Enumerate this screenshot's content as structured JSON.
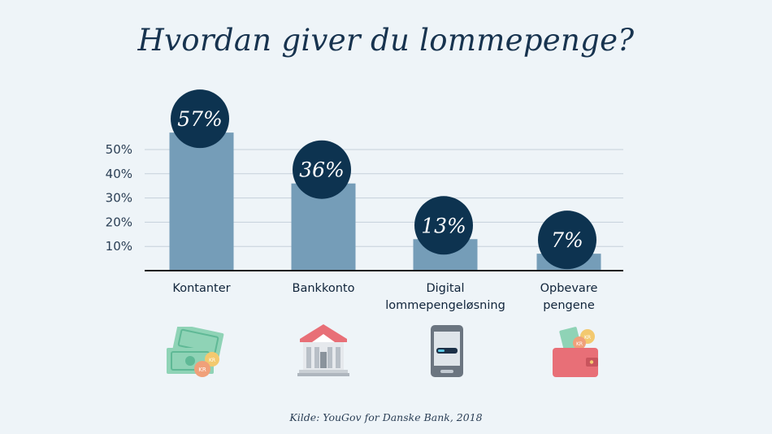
{
  "chart_data": {
    "type": "bar",
    "title": "Hvordan giver du lommepenge?",
    "categories": [
      "Kontanter",
      "Bankkonto",
      "Digital\nlommepengeløsning",
      "Opbevare\npengene"
    ],
    "values": [
      57,
      36,
      13,
      7
    ],
    "value_labels": [
      "57%",
      "36%",
      "13%",
      "7%"
    ],
    "yticks": [
      {
        "value": 10,
        "label": "10%"
      },
      {
        "value": 20,
        "label": "20%"
      },
      {
        "value": 30,
        "label": "30%"
      },
      {
        "value": 40,
        "label": "40%"
      },
      {
        "value": 50,
        "label": "50%"
      }
    ],
    "ylim": [
      0,
      60
    ],
    "grid": true,
    "xlabel": "",
    "ylabel": ""
  },
  "icons": [
    "cash-icon",
    "bank-icon",
    "phone-icon",
    "wallet-icon"
  ],
  "source": "Kilde: YouGov for Danske Bank, 2018",
  "colors": {
    "background": "#eef4f8",
    "bar": "#759db8",
    "badge": "#0d3350",
    "grid": "#c5d0da",
    "axis": "#1b1b1b",
    "title": "#17334f"
  }
}
